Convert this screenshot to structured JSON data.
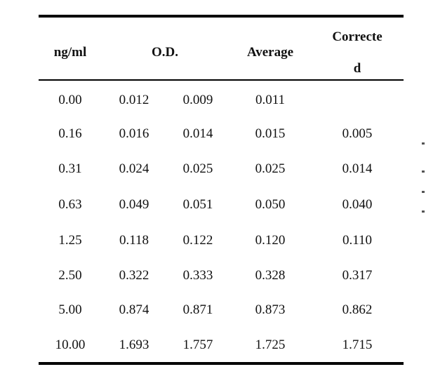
{
  "table": {
    "headers": {
      "conc": "ng/ml",
      "od": "O.D.",
      "average": "Average",
      "corrected_line1": "Correcte",
      "corrected_line2": "d"
    },
    "rows": [
      {
        "conc": "0.00",
        "od1": "0.012",
        "od2": "0.009",
        "avg": "0.011",
        "corr": ""
      },
      {
        "conc": "0.16",
        "od1": "0.016",
        "od2": "0.014",
        "avg": "0.015",
        "corr": "0.005"
      },
      {
        "conc": "0.31",
        "od1": "0.024",
        "od2": "0.025",
        "avg": "0.025",
        "corr": "0.014"
      },
      {
        "conc": "0.63",
        "od1": "0.049",
        "od2": "0.051",
        "avg": "0.050",
        "corr": "0.040"
      },
      {
        "conc": "1.25",
        "od1": "0.118",
        "od2": "0.122",
        "avg": "0.120",
        "corr": "0.110"
      },
      {
        "conc": "2.50",
        "od1": "0.322",
        "od2": "0.333",
        "avg": "0.328",
        "corr": "0.317"
      },
      {
        "conc": "5.00",
        "od1": "0.874",
        "od2": "0.871",
        "avg": "0.873",
        "corr": "0.862"
      },
      {
        "conc": "10.00",
        "od1": "1.693",
        "od2": "1.757",
        "avg": "1.725",
        "corr": "1.715"
      }
    ]
  }
}
